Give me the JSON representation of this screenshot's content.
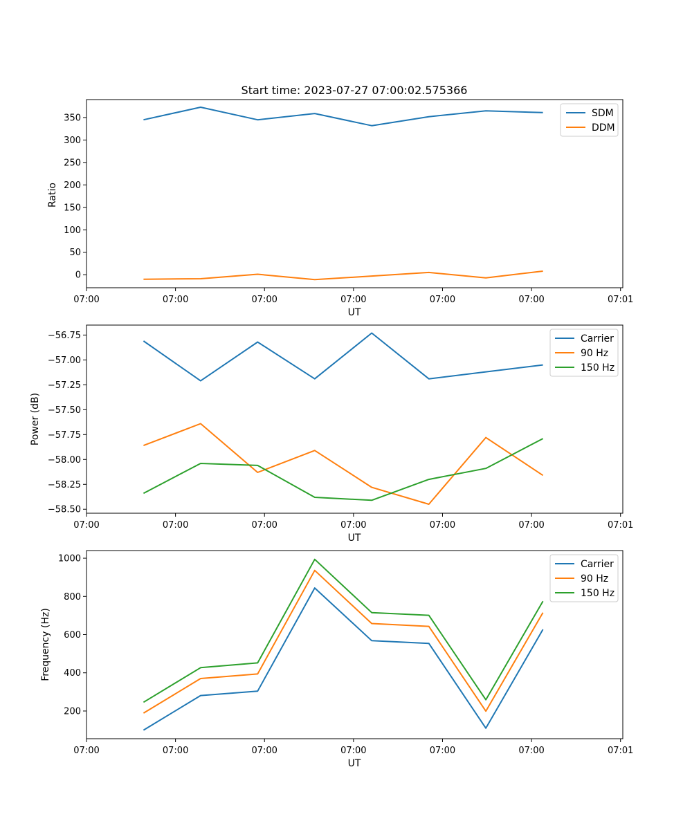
{
  "chart_data": [
    {
      "type": "line",
      "title": "Start time: 2023-07-27 07:00:02.575366",
      "xlabel": "UT",
      "ylabel": "Ratio",
      "x": [
        0.5,
        1.0,
        1.5,
        2.0,
        2.5,
        3.0,
        3.5,
        4.0
      ],
      "xlim": [
        0.0,
        4.7
      ],
      "xticks": [
        0.0,
        0.78,
        1.56,
        2.34,
        3.12,
        3.9,
        4.68
      ],
      "xtick_labels": [
        "07:00",
        "07:00",
        "07:00",
        "07:00",
        "07:00",
        "07:00",
        "07:01"
      ],
      "ylim": [
        -29,
        390
      ],
      "yticks": [
        0,
        50,
        100,
        150,
        200,
        250,
        300,
        350
      ],
      "ytick_labels": [
        "0",
        "50",
        "100",
        "150",
        "200",
        "250",
        "300",
        "350"
      ],
      "legend": "top-right",
      "series": [
        {
          "name": "SDM",
          "color": "#1f77b4",
          "values": [
            345,
            373,
            345,
            359,
            332,
            352,
            365,
            361
          ]
        },
        {
          "name": "DDM",
          "color": "#ff7f0e",
          "values": [
            -10,
            -9,
            1,
            -11,
            -3,
            5,
            -7,
            8
          ]
        }
      ]
    },
    {
      "type": "line",
      "title": "",
      "xlabel": "UT",
      "ylabel": "Power (dB)",
      "x": [
        0.5,
        1.0,
        1.5,
        2.0,
        2.5,
        3.0,
        3.5,
        4.0
      ],
      "xlim": [
        0.0,
        4.7
      ],
      "xticks": [
        0.0,
        0.78,
        1.56,
        2.34,
        3.12,
        3.9,
        4.68
      ],
      "xtick_labels": [
        "07:00",
        "07:00",
        "07:00",
        "07:00",
        "07:00",
        "07:00",
        "07:01"
      ],
      "ylim": [
        -58.54,
        -56.65
      ],
      "yticks": [
        -58.5,
        -58.25,
        -58.0,
        -57.75,
        -57.5,
        -57.25,
        -57.0,
        -56.75
      ],
      "ytick_labels": [
        "−58.50",
        "−58.25",
        "−58.00",
        "−57.75",
        "−57.50",
        "−57.25",
        "−57.00",
        "−56.75"
      ],
      "legend": "top-right",
      "series": [
        {
          "name": "Carrier",
          "color": "#1f77b4",
          "values": [
            -56.81,
            -57.21,
            -56.82,
            -57.19,
            -56.73,
            -57.19,
            -57.12,
            -57.05
          ]
        },
        {
          "name": "90 Hz",
          "color": "#ff7f0e",
          "values": [
            -57.86,
            -57.64,
            -58.13,
            -57.91,
            -58.28,
            -58.45,
            -57.78,
            -58.16
          ]
        },
        {
          "name": "150 Hz",
          "color": "#2ca02c",
          "values": [
            -58.34,
            -58.04,
            -58.06,
            -58.38,
            -58.41,
            -58.2,
            -58.09,
            -57.79
          ]
        }
      ]
    },
    {
      "type": "line",
      "title": "",
      "xlabel": "UT",
      "ylabel": "Frequency (Hz)",
      "x": [
        0.5,
        1.0,
        1.5,
        2.0,
        2.5,
        3.0,
        3.5,
        4.0
      ],
      "xlim": [
        0.0,
        4.7
      ],
      "xticks": [
        0.0,
        0.78,
        1.56,
        2.34,
        3.12,
        3.9,
        4.68
      ],
      "xtick_labels": [
        "07:00",
        "07:00",
        "07:00",
        "07:00",
        "07:00",
        "07:00",
        "07:01"
      ],
      "ylim": [
        55,
        1040
      ],
      "yticks": [
        200,
        400,
        600,
        800,
        1000
      ],
      "ytick_labels": [
        "200",
        "400",
        "600",
        "800",
        "1000"
      ],
      "legend": "top-right",
      "series": [
        {
          "name": "Carrier",
          "color": "#1f77b4",
          "values": [
            100,
            281,
            304,
            844,
            568,
            554,
            110,
            627
          ]
        },
        {
          "name": "90 Hz",
          "color": "#ff7f0e",
          "values": [
            189,
            370,
            394,
            936,
            658,
            643,
            199,
            715
          ]
        },
        {
          "name": "150 Hz",
          "color": "#2ca02c",
          "values": [
            246,
            427,
            452,
            994,
            715,
            701,
            259,
            775
          ]
        }
      ]
    }
  ]
}
